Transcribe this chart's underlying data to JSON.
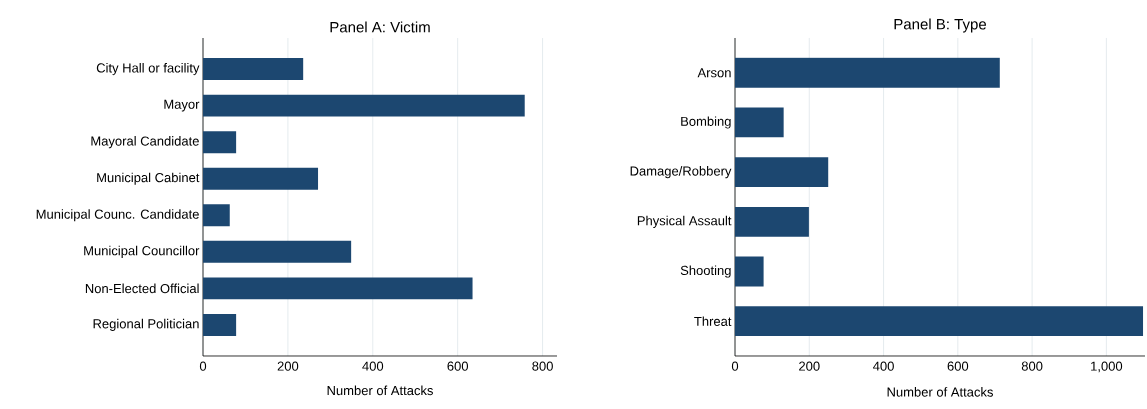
{
  "chart_data": [
    {
      "type": "bar",
      "orientation": "horizontal",
      "title": "Panel A: Victim",
      "xlabel": "Number of Attacks",
      "categories": [
        "City Hall or facility",
        "Mayor",
        "Mayoral Candidate",
        "Municipal Cabinet",
        "Municipal Counc. Candidate",
        "Municipal Councillor",
        "Non-Elected Official",
        "Regional Politician"
      ],
      "values": [
        236,
        758,
        78,
        271,
        63,
        349,
        635,
        78
      ],
      "color": "#1c4770",
      "xlim": [
        0,
        834
      ],
      "xticks": [
        0,
        200,
        400,
        600,
        800
      ],
      "grid": "x"
    },
    {
      "type": "bar",
      "orientation": "horizontal",
      "title": "Panel B: Type",
      "xlabel": "Number of Attacks",
      "categories": [
        "Arson",
        "Bombing",
        "Damage/Robbery",
        "Physical Assault",
        "Shooting",
        "Threat"
      ],
      "values": [
        713,
        131,
        251,
        199,
        77,
        1099
      ],
      "color": "#1c4770",
      "xlim": [
        0,
        1104
      ],
      "xticks": [
        0,
        200,
        400,
        600,
        800,
        {
          "value": 1000,
          "label": "1,000"
        }
      ],
      "grid": "x"
    }
  ]
}
